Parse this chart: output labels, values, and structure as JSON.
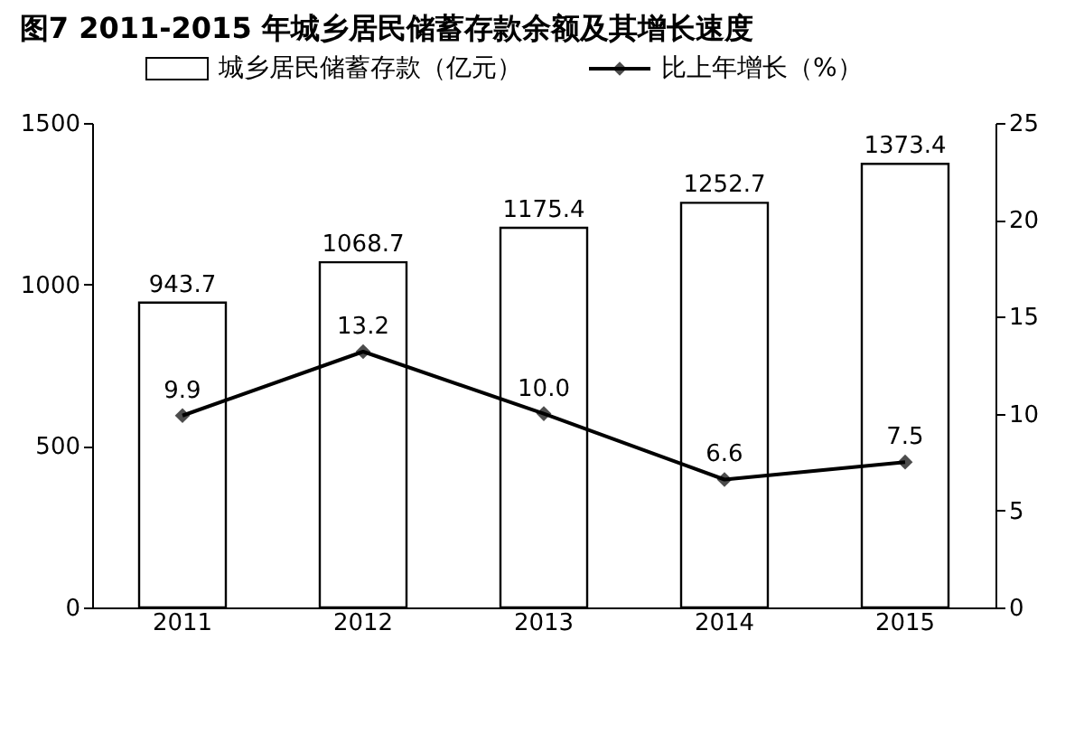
{
  "chart_data": {
    "type": "bar",
    "title": "图7 2011-2015 年城乡居民储蓄存款余额及其增长速度",
    "categories": [
      "2011",
      "2012",
      "2013",
      "2014",
      "2015"
    ],
    "series": [
      {
        "name": "城乡居民储蓄存款（亿元）",
        "color": "#ffffff",
        "values": [
          943.7,
          1068.7,
          1175.4,
          1252.7,
          1373.4
        ]
      },
      {
        "name": "比上年增长（%）",
        "type": "line",
        "axis": "y2",
        "color": "#000000",
        "values": [
          9.9,
          13.2,
          10.0,
          6.6,
          7.5
        ],
        "value_labels": [
          "9.9",
          "13.2",
          "10.0",
          "6.6",
          "7.5"
        ]
      }
    ],
    "ylim": [
      0,
      1500
    ],
    "yticks": [
      0,
      500,
      1000,
      1500
    ],
    "y2lim": [
      0,
      25
    ],
    "y2ticks": [
      0,
      5,
      10,
      15,
      20,
      25
    ],
    "data_labels": true,
    "grid": false,
    "legend": "top",
    "marker": "diamond",
    "line_style": "solid"
  }
}
